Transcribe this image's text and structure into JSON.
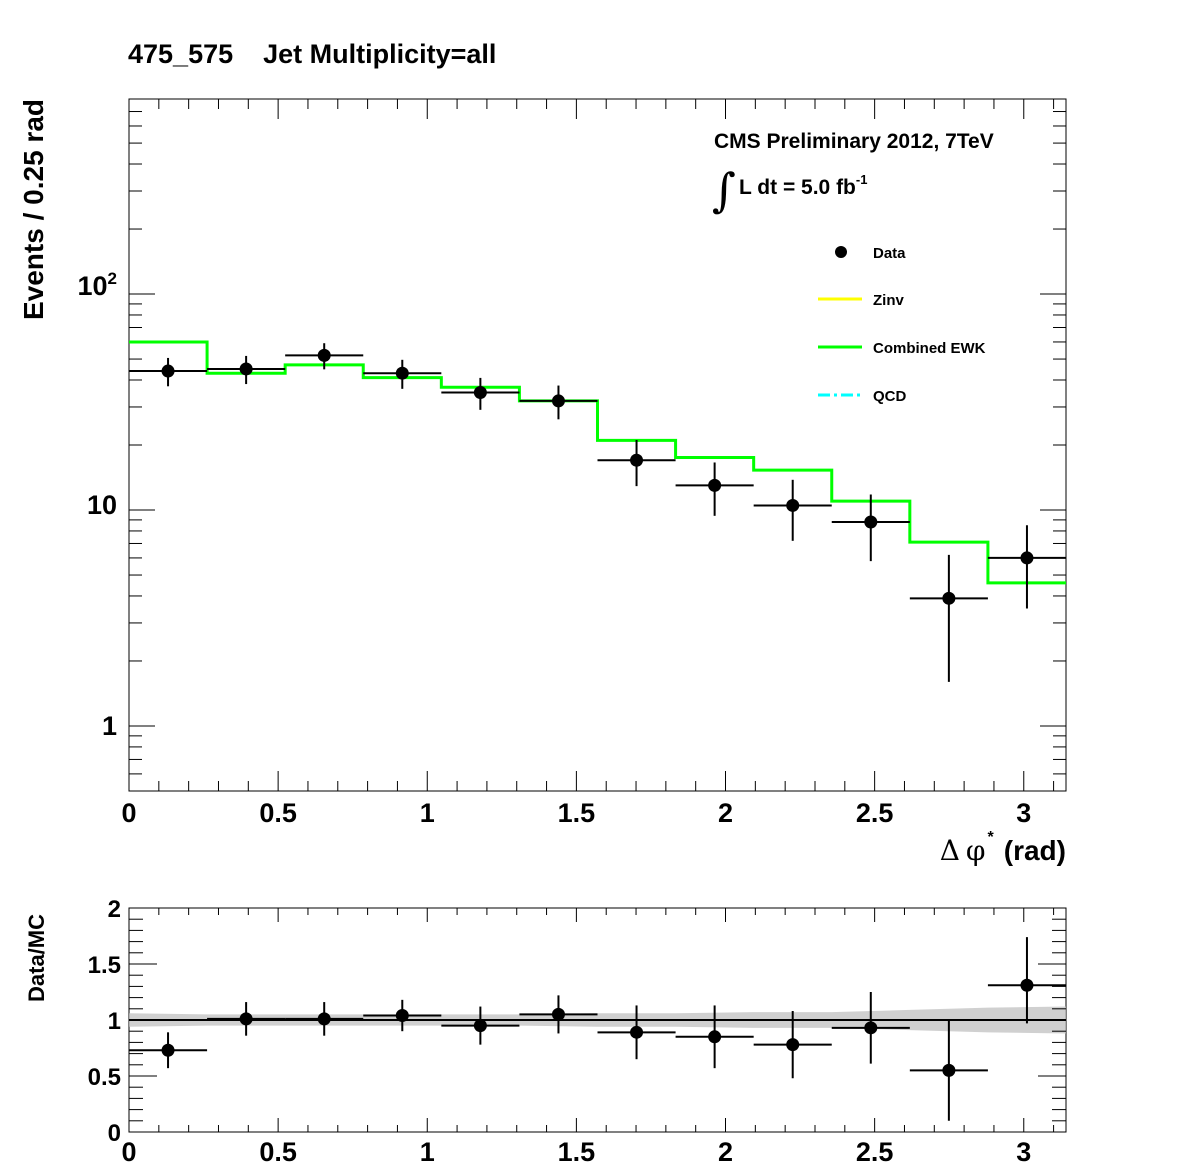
{
  "title": "475_575    Jet Multiplicity=all",
  "cms_label": "CMS Preliminary 2012, 7TeV",
  "lumi": {
    "integral_sign": "∫",
    "text": "L dt = 5.0 fb",
    "superscript": "-1"
  },
  "legend": {
    "placement": "top-right",
    "entries": [
      {
        "label": "Data",
        "style": "marker",
        "color": "#000000"
      },
      {
        "label": "Zinv",
        "style": "line",
        "color": "#ffff00"
      },
      {
        "label": "Combined EWK",
        "style": "line",
        "color": "#00ff00"
      },
      {
        "label": "QCD",
        "style": "dash-dot",
        "color": "#00ffff"
      }
    ]
  },
  "chart_data": [
    {
      "type": "line",
      "subtype": "histogram with data points",
      "title": "475_575    Jet Multiplicity=all",
      "xlabel": {
        "delta": "Δ",
        "phi": "φ",
        "star": "*",
        "unit": "(rad)"
      },
      "ylabel": "Events / 0.25 rad",
      "yscale": "log",
      "xlim": [
        0,
        3.1416
      ],
      "ylim": [
        0.5,
        800
      ],
      "xticks": [
        0,
        0.5,
        1,
        1.5,
        2,
        2.5,
        3
      ],
      "xtick_labels": [
        "0",
        "0.5",
        "1",
        "1.5",
        "2",
        "2.5",
        "3"
      ],
      "yticks": [
        1,
        10,
        100
      ],
      "ytick_labels": [
        {
          "base": "1",
          "exp": ""
        },
        {
          "base": "10",
          "exp": ""
        },
        {
          "base": "10",
          "exp": "2"
        }
      ],
      "bin_edges": [
        0,
        0.2618,
        0.5236,
        0.7854,
        1.0472,
        1.309,
        1.5708,
        1.8326,
        2.0944,
        2.3562,
        2.618,
        2.8798,
        3.1416
      ],
      "series": [
        {
          "name": "Combined EWK",
          "kind": "step",
          "color": "#00ff00",
          "values": [
            60,
            43,
            47,
            41,
            37,
            32,
            21,
            17.5,
            15.3,
            11,
            7.1,
            4.6
          ]
        },
        {
          "name": "Data",
          "kind": "points",
          "color": "#000000",
          "x": [
            0.1309,
            0.3927,
            0.6545,
            0.9163,
            1.1781,
            1.4399,
            1.7017,
            1.9635,
            2.2253,
            2.4871,
            2.7489,
            3.0107
          ],
          "values": [
            44,
            45,
            52,
            43,
            35,
            32,
            17,
            13,
            10.5,
            8.8,
            3.9,
            6
          ],
          "err_low": [
            6.6,
            6.7,
            7.2,
            6.6,
            5.9,
            5.7,
            4.1,
            3.6,
            3.3,
            3,
            2.3,
            2.5
          ],
          "err_high": [
            6.6,
            6.7,
            7.2,
            6.6,
            5.9,
            5.7,
            4.1,
            3.6,
            3.3,
            3,
            2.3,
            2.5
          ]
        }
      ]
    },
    {
      "type": "scatter",
      "subtype": "ratio panel",
      "ylabel": "Data/MC",
      "xlim": [
        0,
        3.1416
      ],
      "ylim": [
        0,
        2
      ],
      "xticks": [
        0,
        0.5,
        1,
        1.5,
        2,
        2.5,
        3
      ],
      "xtick_labels": [
        "0",
        "0.5",
        "1",
        "1.5",
        "2",
        "2.5",
        "3"
      ],
      "yticks": [
        0,
        0.5,
        1,
        1.5,
        2
      ],
      "ytick_labels": [
        "0",
        "0.5",
        "1",
        "1.5",
        "2"
      ],
      "reference_line": 1,
      "band": {
        "color": "#c0c0c0",
        "x": [
          0,
          0.2618,
          0.5236,
          0.7854,
          1.0472,
          1.309,
          1.5708,
          1.8326,
          2.0944,
          2.3562,
          2.618,
          2.8798,
          3.1416
        ],
        "half_width": [
          0.06,
          0.05,
          0.05,
          0.05,
          0.05,
          0.05,
          0.06,
          0.06,
          0.07,
          0.07,
          0.09,
          0.11,
          0.12
        ]
      },
      "x": [
        0.1309,
        0.3927,
        0.6545,
        0.9163,
        1.1781,
        1.4399,
        1.7017,
        1.9635,
        2.2253,
        2.4871,
        2.7489,
        3.0107
      ],
      "values": [
        0.73,
        1.01,
        1.01,
        1.04,
        0.95,
        1.05,
        0.89,
        0.85,
        0.78,
        0.93,
        0.55,
        1.31
      ],
      "err_low": [
        0.16,
        0.15,
        0.15,
        0.14,
        0.17,
        0.17,
        0.24,
        0.28,
        0.3,
        0.32,
        0.45,
        0.34
      ],
      "err_high": [
        0.16,
        0.15,
        0.15,
        0.14,
        0.17,
        0.17,
        0.24,
        0.28,
        0.3,
        0.32,
        0.45,
        0.43
      ]
    }
  ]
}
